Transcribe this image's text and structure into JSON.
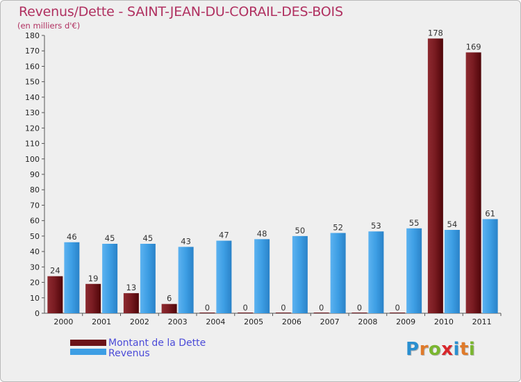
{
  "title": "Revenus/Dette - SAINT-JEAN-DU-CORAIL-DES-BOIS",
  "subtitle": "(en milliers d'€)",
  "brand": {
    "text": "Proxiti",
    "letters": [
      {
        "ch": "P",
        "color": "#2a8fd0"
      },
      {
        "ch": "r",
        "color": "#e07a2a"
      },
      {
        "ch": "o",
        "color": "#7ab62f"
      },
      {
        "ch": "x",
        "color": "#d8262b"
      },
      {
        "ch": "i",
        "color": "#2a8fd0"
      },
      {
        "ch": "t",
        "color": "#e07a2a"
      },
      {
        "ch": "i",
        "color": "#7ab62f"
      }
    ]
  },
  "chart_data": {
    "type": "bar",
    "title": "Revenus/Dette - SAINT-JEAN-DU-CORAIL-DES-BOIS",
    "ylabel": "(en milliers d'€)",
    "categories": [
      "2000",
      "2001",
      "2002",
      "2003",
      "2004",
      "2005",
      "2006",
      "2007",
      "2008",
      "2009",
      "2010",
      "2011"
    ],
    "series": [
      {
        "name": "Montant de la Dette",
        "values": [
          24,
          19,
          13,
          6,
          0,
          0,
          0,
          0,
          0,
          0,
          178,
          169
        ],
        "color": "#6b1218"
      },
      {
        "name": "Revenus",
        "values": [
          46,
          45,
          45,
          43,
          47,
          48,
          50,
          52,
          53,
          55,
          54,
          61
        ],
        "color": "#3d9ee4"
      }
    ],
    "ylim": [
      0,
      180
    ],
    "ytick_step": 10,
    "grid": false,
    "legend": "bottom-left"
  }
}
